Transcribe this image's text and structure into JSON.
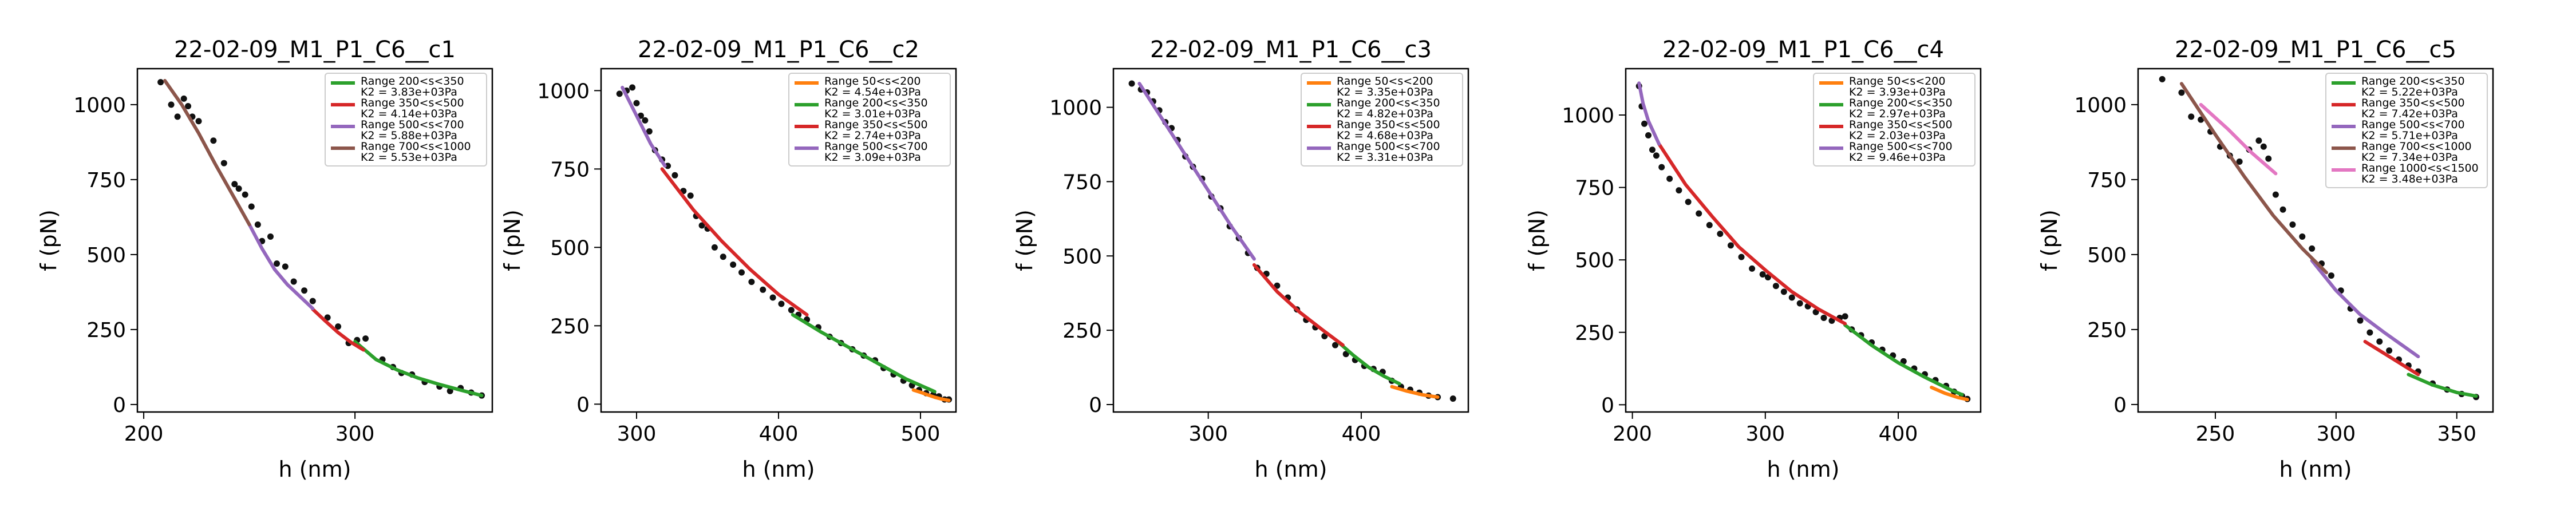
{
  "figure": {
    "panel_count": 5
  },
  "chart_data": [
    {
      "type": "scatter",
      "title": "22-02-09_M1_P1_C6__c1",
      "xlabel": "h (nm)",
      "ylabel": "f (pN)",
      "xlim": [
        197,
        365
      ],
      "ylim": [
        -25,
        1120
      ],
      "xticks": [
        200,
        300
      ],
      "yticks": [
        0,
        250,
        500,
        750,
        1000
      ],
      "legend_position": "upper right",
      "points": {
        "x": [
          208,
          213,
          216,
          219,
          221,
          223,
          226,
          233,
          238,
          243,
          245,
          248,
          251,
          254,
          256,
          260,
          263,
          267,
          271,
          276,
          280,
          287,
          292,
          297,
          301,
          305,
          313,
          318,
          322,
          327,
          333,
          340,
          345,
          350,
          355,
          360
        ],
        "y": [
          1075,
          1000,
          960,
          1020,
          995,
          960,
          945,
          880,
          805,
          735,
          720,
          700,
          660,
          600,
          545,
          560,
          470,
          460,
          410,
          380,
          345,
          290,
          260,
          205,
          215,
          220,
          150,
          125,
          105,
          100,
          75,
          60,
          45,
          55,
          40,
          30
        ]
      },
      "series": [
        {
          "name": "Range 200<s<350",
          "k2": "K2 = 3.83e+03Pa",
          "color": "#2ca02c",
          "x": [
            300,
            310,
            320,
            330,
            340,
            350,
            360
          ],
          "y": [
            210,
            150,
            115,
            88,
            67,
            48,
            30
          ]
        },
        {
          "name": "Range 350<s<500",
          "k2": "K2 = 4.14e+03Pa",
          "color": "#d62728",
          "x": [
            280,
            286,
            292,
            298,
            304
          ],
          "y": [
            318,
            278,
            240,
            208,
            182
          ]
        },
        {
          "name": "Range 500<s<700",
          "k2": "K2 = 5.88e+03Pa",
          "color": "#9467bd",
          "x": [
            250,
            256,
            262,
            268,
            274,
            280
          ],
          "y": [
            600,
            520,
            450,
            400,
            360,
            320
          ]
        },
        {
          "name": "Range 700<s<1000",
          "k2": "K2 = 5.53e+03Pa",
          "color": "#8c564b",
          "x": [
            210,
            218,
            226,
            234,
            242,
            250
          ],
          "y": [
            1080,
            1000,
            905,
            800,
            700,
            600
          ]
        }
      ]
    },
    {
      "type": "scatter",
      "title": "22-02-09_M1_P1_C6__c2",
      "xlabel": "h (nm)",
      "ylabel": "f (pN)",
      "xlim": [
        275,
        525
      ],
      "ylim": [
        -25,
        1070
      ],
      "xticks": [
        300,
        400,
        500
      ],
      "yticks": [
        0,
        250,
        500,
        750,
        1000
      ],
      "legend_position": "upper right",
      "points": {
        "x": [
          288,
          293,
          297,
          300,
          303,
          306,
          309,
          313,
          318,
          322,
          327,
          333,
          338,
          342,
          346,
          350,
          355,
          361,
          368,
          374,
          381,
          389,
          396,
          402,
          409,
          414,
          420,
          428,
          436,
          444,
          452,
          460,
          468,
          474,
          481,
          488,
          494,
          499,
          504,
          509,
          513,
          517,
          520
        ],
        "y": [
          990,
          1000,
          1010,
          960,
          920,
          905,
          870,
          810,
          780,
          760,
          730,
          680,
          665,
          600,
          570,
          560,
          500,
          470,
          445,
          420,
          390,
          365,
          340,
          320,
          300,
          285,
          270,
          245,
          215,
          195,
          175,
          155,
          140,
          115,
          95,
          75,
          60,
          45,
          35,
          30,
          25,
          15,
          15
        ]
      },
      "series": [
        {
          "name": "Range 50<s<200",
          "k2": "K2 = 4.54e+03Pa",
          "color": "#ff7f0e",
          "x": [
            495,
            500,
            505,
            510,
            515,
            520
          ],
          "y": [
            45,
            38,
            30,
            22,
            16,
            12
          ]
        },
        {
          "name": "Range 200<s<350",
          "k2": "K2 = 3.01e+03Pa",
          "color": "#2ca02c",
          "x": [
            410,
            430,
            450,
            470,
            490,
            510
          ],
          "y": [
            285,
            230,
            180,
            130,
            80,
            40
          ]
        },
        {
          "name": "Range 350<s<500",
          "k2": "K2 = 2.74e+03Pa",
          "color": "#d62728",
          "x": [
            318,
            340,
            360,
            380,
            400,
            420
          ],
          "y": [
            750,
            620,
            520,
            430,
            350,
            285
          ]
        },
        {
          "name": "Range 500<s<700",
          "k2": "K2 = 3.09e+03Pa",
          "color": "#9467bd",
          "x": [
            290,
            300,
            310,
            320
          ],
          "y": [
            1010,
            920,
            830,
            760
          ]
        }
      ]
    },
    {
      "type": "scatter",
      "title": "22-02-09_M1_P1_C6__c3",
      "xlabel": "h (nm)",
      "ylabel": "f (pN)",
      "xlim": [
        238,
        470
      ],
      "ylim": [
        -25,
        1130
      ],
      "xticks": [
        300,
        400
      ],
      "yticks": [
        0,
        250,
        500,
        750,
        1000
      ],
      "legend_position": "upper right",
      "points": {
        "x": [
          250,
          256,
          260,
          264,
          268,
          272,
          276,
          280,
          285,
          290,
          296,
          302,
          308,
          314,
          320,
          326,
          332,
          338,
          345,
          352,
          358,
          364,
          370,
          376,
          383,
          390,
          396,
          402,
          408,
          414,
          420,
          426,
          432,
          438,
          444,
          450,
          460
        ],
        "y": [
          1080,
          1060,
          1050,
          1020,
          990,
          950,
          930,
          890,
          835,
          800,
          760,
          700,
          660,
          600,
          560,
          510,
          460,
          440,
          400,
          360,
          320,
          285,
          260,
          230,
          200,
          170,
          150,
          130,
          120,
          110,
          80,
          60,
          50,
          40,
          30,
          25,
          20
        ]
      },
      "series": [
        {
          "name": "Range 50<s<200",
          "k2": "K2 = 3.35e+03Pa",
          "color": "#ff7f0e",
          "x": [
            420,
            430,
            440,
            450
          ],
          "y": [
            60,
            45,
            33,
            25
          ]
        },
        {
          "name": "Range 200<s<350",
          "k2": "K2 = 4.82e+03Pa",
          "color": "#2ca02c",
          "x": [
            385,
            395,
            405,
            415,
            425
          ],
          "y": [
            210,
            165,
            125,
            95,
            70
          ]
        },
        {
          "name": "Range 350<s<500",
          "k2": "K2 = 4.68e+03Pa",
          "color": "#d62728",
          "x": [
            330,
            345,
            360,
            375,
            388
          ],
          "y": [
            470,
            380,
            310,
            250,
            200
          ]
        },
        {
          "name": "Range 500<s<700",
          "k2": "K2 = 3.31e+03Pa",
          "color": "#9467bd",
          "x": [
            255,
            270,
            285,
            300,
            315,
            330
          ],
          "y": [
            1080,
            960,
            840,
            720,
            600,
            490
          ]
        }
      ]
    },
    {
      "type": "scatter",
      "title": "22-02-09_M1_P1_C6__c4",
      "xlabel": "h (nm)",
      "ylabel": "f (pN)",
      "xlim": [
        195,
        462
      ],
      "ylim": [
        -25,
        1160
      ],
      "xticks": [
        200,
        300,
        400
      ],
      "yticks": [
        0,
        250,
        500,
        750,
        1000
      ],
      "legend_position": "upper right",
      "points": {
        "x": [
          205,
          207,
          209,
          212,
          215,
          218,
          222,
          228,
          235,
          242,
          250,
          258,
          266,
          274,
          282,
          290,
          298,
          302,
          308,
          314,
          320,
          326,
          332,
          338,
          344,
          350,
          356,
          360,
          365,
          372,
          380,
          388,
          396,
          404,
          412,
          420,
          428,
          436,
          442,
          448,
          452
        ],
        "y": [
          1100,
          1030,
          970,
          930,
          880,
          860,
          820,
          780,
          740,
          700,
          660,
          620,
          590,
          550,
          510,
          470,
          450,
          440,
          410,
          390,
          370,
          350,
          340,
          320,
          300,
          290,
          300,
          305,
          260,
          240,
          215,
          190,
          170,
          150,
          125,
          105,
          85,
          65,
          45,
          30,
          20
        ]
      },
      "series": [
        {
          "name": "Range 50<s<200",
          "k2": "K2 = 3.93e+03Pa",
          "color": "#ff7f0e",
          "x": [
            425,
            435,
            445,
            452
          ],
          "y": [
            60,
            40,
            25,
            18
          ]
        },
        {
          "name": "Range 200<s<350",
          "k2": "K2 = 2.97e+03Pa",
          "color": "#2ca02c",
          "x": [
            360,
            380,
            400,
            420,
            440,
            448
          ],
          "y": [
            275,
            205,
            145,
            95,
            50,
            35
          ]
        },
        {
          "name": "Range 350<s<500",
          "k2": "K2 = 2.03e+03Pa",
          "color": "#d62728",
          "x": [
            220,
            240,
            260,
            280,
            300,
            320,
            340,
            360
          ],
          "y": [
            900,
            760,
            650,
            545,
            465,
            390,
            330,
            280
          ]
        },
        {
          "name": "Range 500<s<700",
          "k2": "K2 = 9.46e+03Pa",
          "color": "#9467bd",
          "x": [
            205,
            208,
            212,
            216,
            220
          ],
          "y": [
            1110,
            1040,
            980,
            940,
            900
          ]
        }
      ]
    },
    {
      "type": "scatter",
      "title": "22-02-09_M1_P1_C6__c5",
      "xlabel": "h (nm)",
      "ylabel": "f (pN)",
      "xlim": [
        218,
        365
      ],
      "ylim": [
        -25,
        1120
      ],
      "xticks": [
        250,
        300,
        350
      ],
      "yticks": [
        0,
        250,
        500,
        750,
        1000
      ],
      "legend_position": "upper right",
      "points": {
        "x": [
          228,
          236,
          240,
          244,
          248,
          252,
          256,
          260,
          264,
          268,
          270,
          272,
          275,
          278,
          282,
          286,
          290,
          294,
          298,
          302,
          306,
          310,
          314,
          318,
          322,
          326,
          330,
          334,
          340,
          346,
          352,
          358
        ],
        "y": [
          1085,
          1040,
          960,
          950,
          910,
          860,
          830,
          810,
          850,
          880,
          860,
          820,
          700,
          650,
          600,
          560,
          520,
          470,
          430,
          380,
          320,
          280,
          240,
          210,
          180,
          150,
          130,
          110,
          70,
          50,
          35,
          25
        ]
      },
      "series": [
        {
          "name": "Range 200<s<350",
          "k2": "K2 = 5.22e+03Pa",
          "color": "#2ca02c",
          "x": [
            330,
            340,
            350,
            358
          ],
          "y": [
            100,
            65,
            40,
            28
          ]
        },
        {
          "name": "Range 350<s<500",
          "k2": "K2 = 7.42e+03Pa",
          "color": "#d62728",
          "x": [
            312,
            320,
            328,
            334
          ],
          "y": [
            210,
            170,
            130,
            100
          ]
        },
        {
          "name": "Range 500<s<700",
          "k2": "K2 = 5.71e+03Pa",
          "color": "#9467bd",
          "x": [
            290,
            300,
            310,
            320,
            334
          ],
          "y": [
            480,
            380,
            300,
            240,
            160
          ]
        },
        {
          "name": "Range 700<s<1000",
          "k2": "K2 = 7.34e+03Pa",
          "color": "#8c564b",
          "x": [
            236,
            250,
            262,
            274,
            286,
            296
          ],
          "y": [
            1070,
            900,
            760,
            630,
            520,
            440
          ]
        },
        {
          "name": "Range 1000<s<1500",
          "k2": "K2 = 3.48e+03Pa",
          "color": "#e377c2",
          "x": [
            244,
            255,
            265,
            275
          ],
          "y": [
            1000,
            920,
            840,
            770
          ]
        }
      ]
    }
  ]
}
